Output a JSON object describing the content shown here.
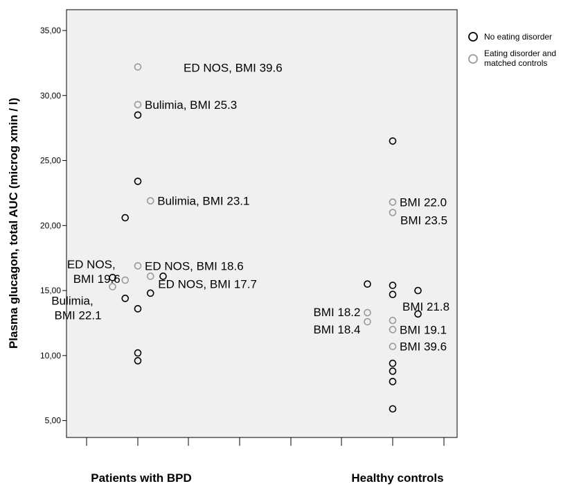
{
  "chart_data": {
    "type": "scatter",
    "ylabel": "Plasma glucagon, total AUC (microg xmin / l)",
    "y_ticks": [
      "5,00",
      "10,00",
      "15,00",
      "20,00",
      "25,00",
      "30,00",
      "35,00"
    ],
    "ylim": [
      3.7,
      36.6
    ],
    "categories": [
      "Patients with BPD",
      "Healthy controls"
    ],
    "grid": false,
    "legend_position": "top-right",
    "series": [
      {
        "name": "No eating disorder",
        "color": "#000000",
        "points": [
          {
            "group": "Patients with BPD",
            "offset": 0,
            "y": 28.5
          },
          {
            "group": "Patients with BPD",
            "offset": 0,
            "y": 23.4
          },
          {
            "group": "Patients with BPD",
            "offset": -0.5,
            "y": 20.6
          },
          {
            "group": "Patients with BPD",
            "offset": -1,
            "y": 16.0
          },
          {
            "group": "Patients with BPD",
            "offset": 1,
            "y": 16.1
          },
          {
            "group": "Patients with BPD",
            "offset": 0.5,
            "y": 14.8
          },
          {
            "group": "Patients with BPD",
            "offset": -0.5,
            "y": 14.4
          },
          {
            "group": "Patients with BPD",
            "offset": 0,
            "y": 13.6
          },
          {
            "group": "Patients with BPD",
            "offset": 0,
            "y": 10.2
          },
          {
            "group": "Patients with BPD",
            "offset": 0,
            "y": 9.6
          },
          {
            "group": "Healthy controls",
            "offset": 0,
            "y": 26.5
          },
          {
            "group": "Healthy controls",
            "offset": -1,
            "y": 15.5
          },
          {
            "group": "Healthy controls",
            "offset": 0,
            "y": 15.4
          },
          {
            "group": "Healthy controls",
            "offset": 1,
            "y": 15.0
          },
          {
            "group": "Healthy controls",
            "offset": 0,
            "y": 14.7
          },
          {
            "group": "Healthy controls",
            "offset": 1,
            "y": 13.2
          },
          {
            "group": "Healthy controls",
            "offset": 0,
            "y": 9.4
          },
          {
            "group": "Healthy controls",
            "offset": 0,
            "y": 8.8
          },
          {
            "group": "Healthy controls",
            "offset": 0,
            "y": 8.0
          },
          {
            "group": "Healthy controls",
            "offset": 0,
            "y": 5.9
          }
        ]
      },
      {
        "name": "Eating disorder and matched controls",
        "color": "#999999",
        "points": [
          {
            "group": "Patients with BPD",
            "offset": 0,
            "y": 32.2,
            "label": "ED NOS, BMI 39.6",
            "label_pos": "far-right"
          },
          {
            "group": "Patients with BPD",
            "offset": 0,
            "y": 29.3,
            "label": "Bulimia, BMI 25.3",
            "label_pos": "right"
          },
          {
            "group": "Patients with BPD",
            "offset": 0.5,
            "y": 21.9,
            "label": "Bulimia, BMI 23.1",
            "label_pos": "right"
          },
          {
            "group": "Patients with BPD",
            "offset": 0,
            "y": 16.9,
            "label": "ED NOS, BMI 18.6",
            "label_pos": "right"
          },
          {
            "group": "Patients with BPD",
            "offset": 0.5,
            "y": 16.1,
            "label": "ED NOS, BMI 17.7",
            "label_pos": "right-below"
          },
          {
            "group": "Patients with BPD",
            "offset": -0.5,
            "y": 15.8,
            "label": "ED NOS, BMI 19.6",
            "label_pos": "left-two-line"
          },
          {
            "group": "Patients with BPD",
            "offset": -1,
            "y": 15.3,
            "label": "Bulimia, BMI 22.1",
            "label_pos": "left-below-two-line"
          },
          {
            "group": "Healthy controls",
            "offset": 0,
            "y": 21.8,
            "label": "BMI 22.0",
            "label_pos": "right"
          },
          {
            "group": "Healthy controls",
            "offset": 0,
            "y": 21.0,
            "label": "BMI 23.5",
            "label_pos": "right-below"
          },
          {
            "group": "Healthy controls",
            "offset": -1,
            "y": 13.3,
            "label": "BMI 18.2",
            "label_pos": "left"
          },
          {
            "group": "Healthy controls",
            "offset": -1,
            "y": 12.6,
            "label": "BMI 18.4",
            "label_pos": "left-below"
          },
          {
            "group": "Healthy controls",
            "offset": 0,
            "y": 12.7,
            "label": "BMI 21.8",
            "label_pos": "right-above"
          },
          {
            "group": "Healthy controls",
            "offset": 0,
            "y": 12.0,
            "label": "BMI 19.1",
            "label_pos": "right"
          },
          {
            "group": "Healthy controls",
            "offset": 0,
            "y": 10.7,
            "label": "BMI 39.6",
            "label_pos": "right"
          }
        ]
      }
    ]
  },
  "colors": {
    "plot_background": "#f0f0f0",
    "no_ed_marker": "#000000",
    "ed_marker": "#999999"
  }
}
